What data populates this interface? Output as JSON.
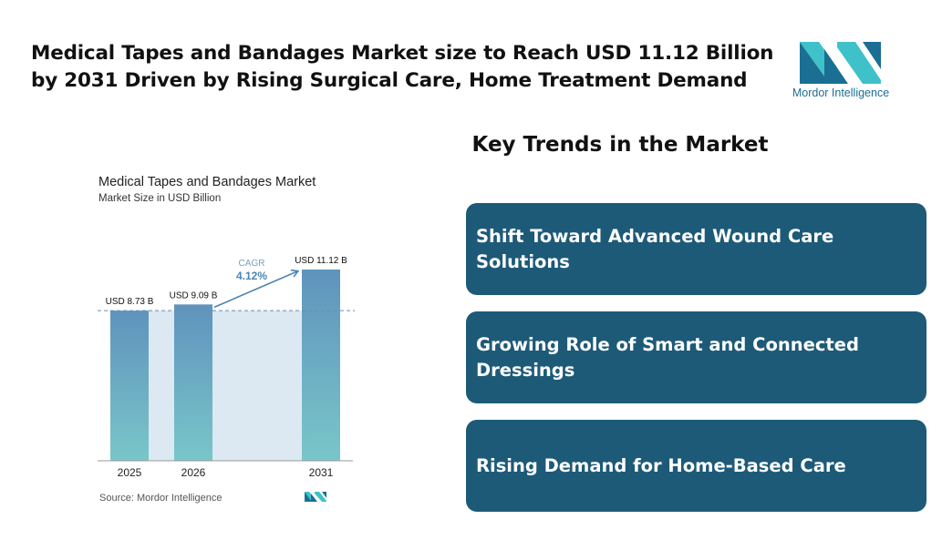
{
  "headline": "Medical Tapes and Bandages Market size to Reach USD 11.12 Billion by 2031 Driven by Rising Surgical Care, Home Treatment Demand",
  "logo": {
    "text": "Mordor Intelligence",
    "icon": "mordor-intelligence-logo"
  },
  "trends": {
    "heading": "Key Trends in the Market",
    "items": [
      "Shift Toward Advanced Wound Care Solutions",
      "Growing Role of Smart and Connected Dressings",
      "Rising Demand for Home-Based Care"
    ]
  },
  "chart_data": {
    "type": "bar",
    "title": "Medical Tapes and Bandages Market",
    "subtitle": "Market Size in USD Billion",
    "categories": [
      "2025",
      "2026",
      "2031"
    ],
    "values": [
      8.73,
      9.09,
      11.12
    ],
    "data_labels": [
      "USD 8.73 B",
      "USD 9.09 B",
      "USD 11.12 B"
    ],
    "cagr_label": "CAGR",
    "cagr_value": "4.12%",
    "source": "Source: Mordor Intelligence",
    "ylim": [
      0,
      11.12
    ],
    "grid": false,
    "colors": {
      "bar_top": "#5f93bd",
      "bar_bottom": "#79c6c9",
      "shaded_area": "#dce8f2",
      "arrow": "#4a86b5",
      "cagr_label": "#7b9fbf",
      "reference_line": "#6a8fb0"
    }
  },
  "colors": {
    "card_bg": "#1d5a78",
    "card_text": "#ffffff",
    "logo_dark": "#1a6f93",
    "logo_light": "#3fc1c9"
  }
}
